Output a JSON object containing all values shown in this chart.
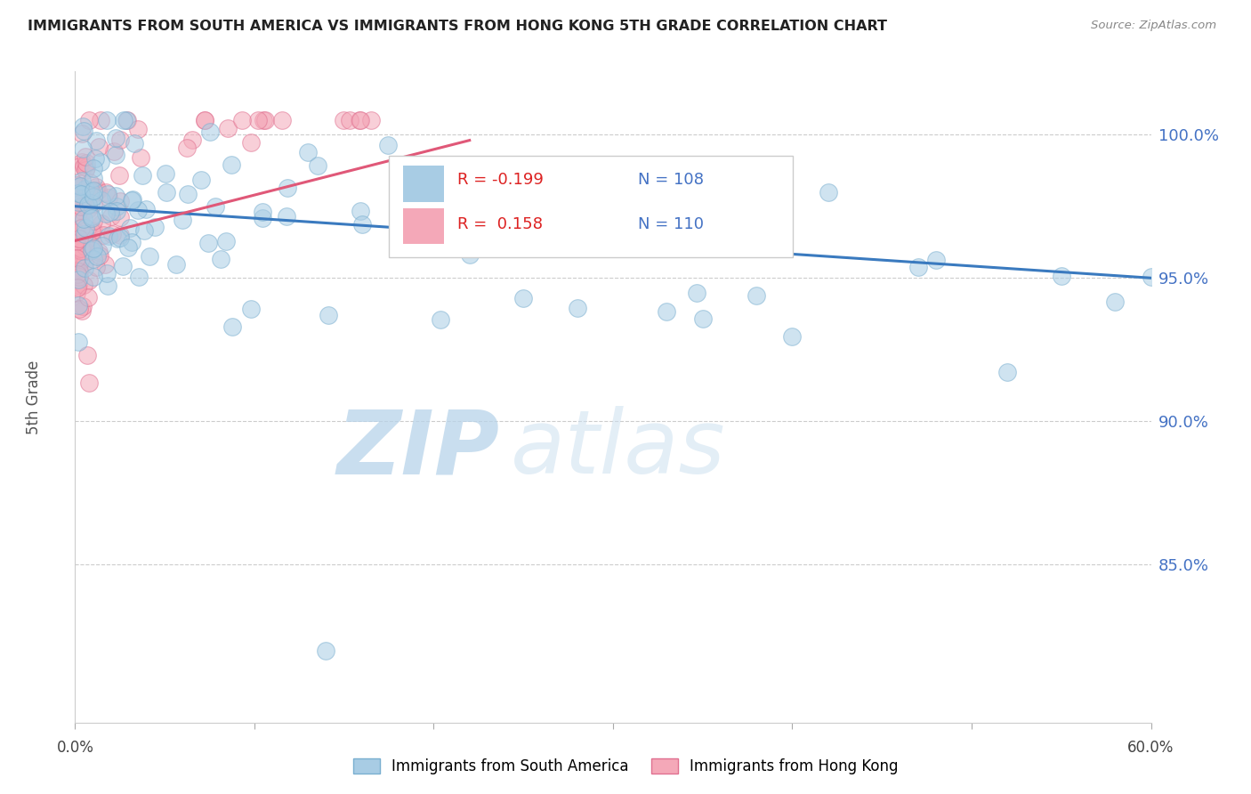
{
  "title": "IMMIGRANTS FROM SOUTH AMERICA VS IMMIGRANTS FROM HONG KONG 5TH GRADE CORRELATION CHART",
  "source": "Source: ZipAtlas.com",
  "ylabel": "5th Grade",
  "ytick_labels": [
    "100.0%",
    "95.0%",
    "90.0%",
    "85.0%"
  ],
  "ytick_values": [
    1.0,
    0.95,
    0.9,
    0.85
  ],
  "xmin": 0.0,
  "xmax": 0.6,
  "ymin": 0.795,
  "ymax": 1.022,
  "legend_blue_r": "R = -0.199",
  "legend_blue_n": "N = 108",
  "legend_pink_r": "R =  0.158",
  "legend_pink_n": "N = 110",
  "blue_trend_x": [
    0.0,
    0.6
  ],
  "blue_trend_y": [
    0.975,
    0.95
  ],
  "pink_trend_x": [
    0.0,
    0.22
  ],
  "pink_trend_y": [
    0.963,
    0.998
  ],
  "watermark_zip": "ZIP",
  "watermark_atlas": "atlas",
  "watermark_color": "#cde3f5",
  "blue_color": "#a8cce4",
  "blue_edge": "#7aafd0",
  "pink_color": "#f4a8b8",
  "pink_edge": "#e07090",
  "blue_line_color": "#3a7abf",
  "pink_line_color": "#e05878"
}
